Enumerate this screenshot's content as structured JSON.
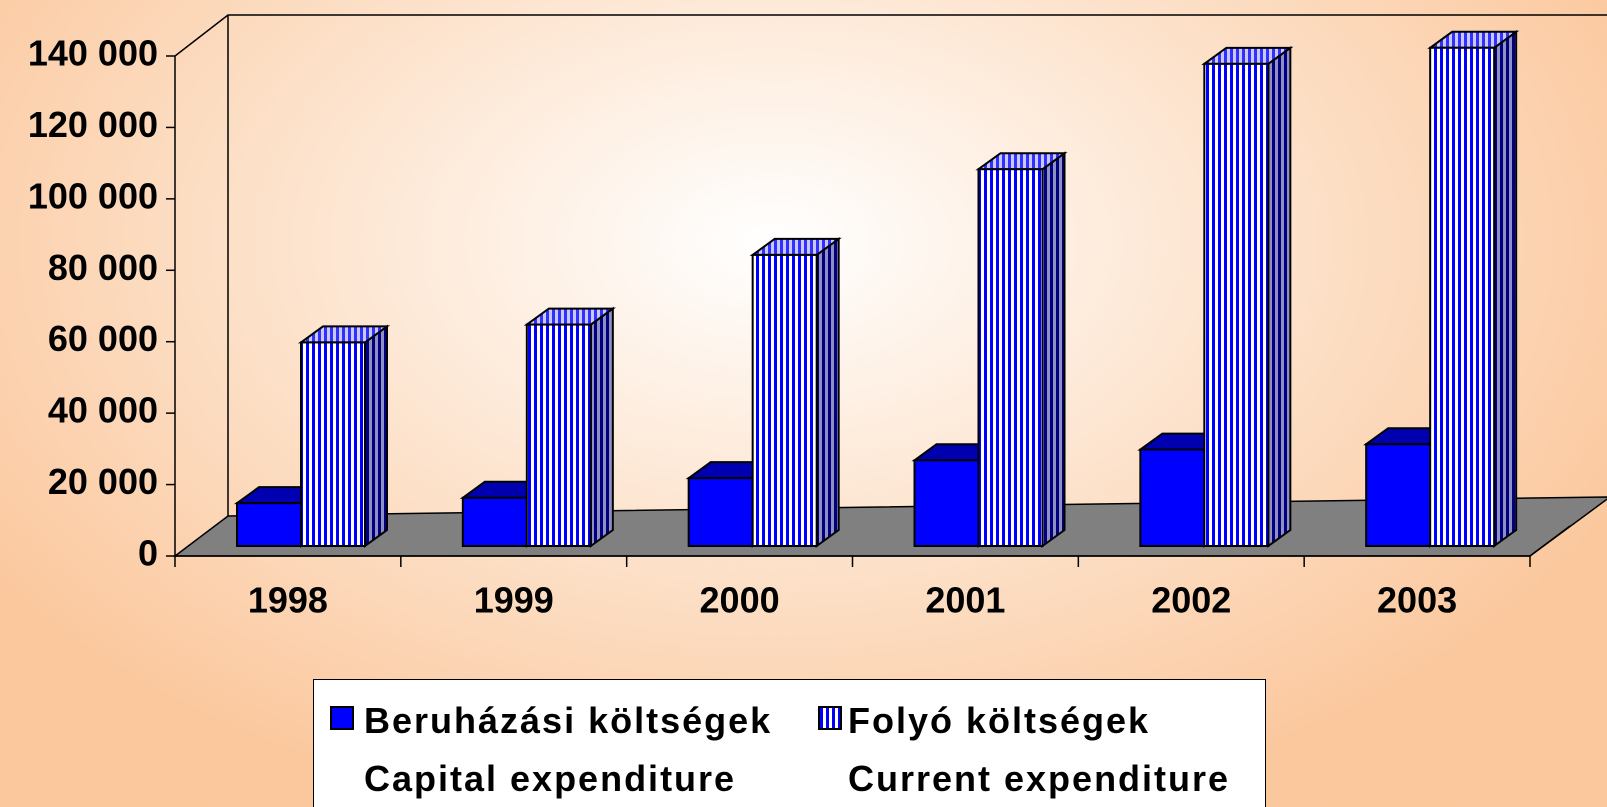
{
  "chart_data": {
    "type": "bar3d",
    "categories": [
      "1998",
      "1999",
      "2000",
      "2001",
      "2002",
      "2003"
    ],
    "series": [
      {
        "name": "Beruházási költségek\nCapital expenditure",
        "color": "#0000ff",
        "values": [
          12000,
          13500,
          19000,
          24000,
          27000,
          28500
        ]
      },
      {
        "name": "Folyó költségek\nCurrent expenditure",
        "color": "#0000ff",
        "pattern": "vertical-stripes",
        "values": [
          57000,
          62000,
          81500,
          105500,
          135000,
          139500
        ]
      }
    ],
    "ylim": [
      0,
      140000
    ],
    "yticks": [
      0,
      {
        "value": 20000,
        "label": "20 000"
      },
      {
        "value": 40000,
        "label": "40 000"
      },
      {
        "value": 60000,
        "label": "60 000"
      },
      {
        "value": 80000,
        "label": "80 000"
      },
      {
        "value": 100000,
        "label": "100 000"
      },
      {
        "value": 120000,
        "label": "120 000"
      },
      {
        "value": 140000,
        "label": "140 000"
      }
    ],
    "legend": "bottom"
  }
}
